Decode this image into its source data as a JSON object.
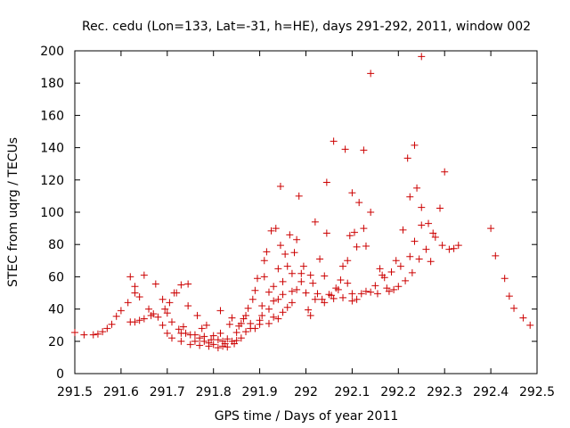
{
  "chart_data": {
    "type": "scatter",
    "title": "Rec. cedu (Lon=133, Lat=-31, h=HE), days 291-292, 2011, window 002",
    "xlabel": "GPS time / Days of year 2011",
    "ylabel": "STEC from uqrg / TECUs",
    "xlim": [
      291.5,
      292.5
    ],
    "ylim": [
      0,
      200
    ],
    "xticks": [
      291.5,
      291.6,
      291.7,
      291.8,
      291.9,
      292,
      292.1,
      292.2,
      292.3,
      292.4,
      292.5
    ],
    "yticks": [
      0,
      20,
      40,
      60,
      80,
      100,
      120,
      140,
      160,
      180,
      200
    ],
    "grid": false,
    "marker": "+",
    "color": "#cc0000",
    "points": [
      [
        291.5,
        25.5
      ],
      [
        291.52,
        24.0
      ],
      [
        291.54,
        24.0
      ],
      [
        291.55,
        24.5
      ],
      [
        291.56,
        26.0
      ],
      [
        291.57,
        28.0
      ],
      [
        291.58,
        30.5
      ],
      [
        291.59,
        35.5
      ],
      [
        291.6,
        39.0
      ],
      [
        291.615,
        44.0
      ],
      [
        291.62,
        60.0
      ],
      [
        291.62,
        32.0
      ],
      [
        291.63,
        50.0
      ],
      [
        291.63,
        54.0
      ],
      [
        291.63,
        32.0
      ],
      [
        291.64,
        33.0
      ],
      [
        291.64,
        47.5
      ],
      [
        291.65,
        61.0
      ],
      [
        291.65,
        34.0
      ],
      [
        291.66,
        40.0
      ],
      [
        291.665,
        36.0
      ],
      [
        291.67,
        37.0
      ],
      [
        291.675,
        55.5
      ],
      [
        291.68,
        35.0
      ],
      [
        291.69,
        30.0
      ],
      [
        291.69,
        46.0
      ],
      [
        291.695,
        40.0
      ],
      [
        291.7,
        25.0
      ],
      [
        291.7,
        37.5
      ],
      [
        291.705,
        44.0
      ],
      [
        291.71,
        22.0
      ],
      [
        291.71,
        32.0
      ],
      [
        291.715,
        50.0
      ],
      [
        291.72,
        50.0
      ],
      [
        291.725,
        27.5
      ],
      [
        291.73,
        55.0
      ],
      [
        291.73,
        20.0
      ],
      [
        291.73,
        25.0
      ],
      [
        291.735,
        29.0
      ],
      [
        291.74,
        25.0
      ],
      [
        291.745,
        55.5
      ],
      [
        291.745,
        42.0
      ],
      [
        291.75,
        18.0
      ],
      [
        291.75,
        24.0
      ],
      [
        291.76,
        24.0
      ],
      [
        291.76,
        20.0
      ],
      [
        291.765,
        36.0
      ],
      [
        291.77,
        17.5
      ],
      [
        291.77,
        22.0
      ],
      [
        291.775,
        28.0
      ],
      [
        291.78,
        20.0
      ],
      [
        291.78,
        23.0
      ],
      [
        291.785,
        30.0
      ],
      [
        291.79,
        17.0
      ],
      [
        291.79,
        19.0
      ],
      [
        291.795,
        21.0
      ],
      [
        291.8,
        18.0
      ],
      [
        291.8,
        23.5
      ],
      [
        291.81,
        16.0
      ],
      [
        291.81,
        21.0
      ],
      [
        291.815,
        25.0
      ],
      [
        291.815,
        39.0
      ],
      [
        291.82,
        17.0
      ],
      [
        291.82,
        20.0
      ],
      [
        291.825,
        18.5
      ],
      [
        291.83,
        16.5
      ],
      [
        291.83,
        21.5
      ],
      [
        291.835,
        30.5
      ],
      [
        291.84,
        20.0
      ],
      [
        291.84,
        34.5
      ],
      [
        291.845,
        18.5
      ],
      [
        291.85,
        20.5
      ],
      [
        291.85,
        25.5
      ],
      [
        291.855,
        29.5
      ],
      [
        291.86,
        22.0
      ],
      [
        291.86,
        31.0
      ],
      [
        291.865,
        34.0
      ],
      [
        291.87,
        26.0
      ],
      [
        291.87,
        36.0
      ],
      [
        291.875,
        40.5
      ],
      [
        291.88,
        28.0
      ],
      [
        291.88,
        31.0
      ],
      [
        291.885,
        46.0
      ],
      [
        291.89,
        51.5
      ],
      [
        291.89,
        28.0
      ],
      [
        291.895,
        59.0
      ],
      [
        291.9,
        30.5
      ],
      [
        291.9,
        33.0
      ],
      [
        291.905,
        36.0
      ],
      [
        291.905,
        42.0
      ],
      [
        291.91,
        60.0
      ],
      [
        291.91,
        70.0
      ],
      [
        291.915,
        75.5
      ],
      [
        291.92,
        31.0
      ],
      [
        291.92,
        40.0
      ],
      [
        291.92,
        50.5
      ],
      [
        291.925,
        88.5
      ],
      [
        291.93,
        35.0
      ],
      [
        291.93,
        45.0
      ],
      [
        291.93,
        54.0
      ],
      [
        291.935,
        90.0
      ],
      [
        291.94,
        34.0
      ],
      [
        291.94,
        46.0
      ],
      [
        291.94,
        65.0
      ],
      [
        291.945,
        79.5
      ],
      [
        291.945,
        116.0
      ],
      [
        291.95,
        38.0
      ],
      [
        291.95,
        49.0
      ],
      [
        291.95,
        57.0
      ],
      [
        291.955,
        74.0
      ],
      [
        291.96,
        41.0
      ],
      [
        291.96,
        66.5
      ],
      [
        291.965,
        86.0
      ],
      [
        291.97,
        44.0
      ],
      [
        291.97,
        51.0
      ],
      [
        291.97,
        62.0
      ],
      [
        291.975,
        75.0
      ],
      [
        291.98,
        52.0
      ],
      [
        291.98,
        83.0
      ],
      [
        291.985,
        110.0
      ],
      [
        291.99,
        57.0
      ],
      [
        291.99,
        62.0
      ],
      [
        291.995,
        66.5
      ],
      [
        292.0,
        50.0
      ],
      [
        292.005,
        39.5
      ],
      [
        292.01,
        36.0
      ],
      [
        292.01,
        61.0
      ],
      [
        292.015,
        56.0
      ],
      [
        292.02,
        46.0
      ],
      [
        292.02,
        94.0
      ],
      [
        292.025,
        49.5
      ],
      [
        292.03,
        71.0
      ],
      [
        292.035,
        46.0
      ],
      [
        292.04,
        44.0
      ],
      [
        292.04,
        60.5
      ],
      [
        292.045,
        87.0
      ],
      [
        292.045,
        118.5
      ],
      [
        292.05,
        49.0
      ],
      [
        292.055,
        48.5
      ],
      [
        292.06,
        46.5
      ],
      [
        292.06,
        144.0
      ],
      [
        292.065,
        53.0
      ],
      [
        292.07,
        52.0
      ],
      [
        292.075,
        58.0
      ],
      [
        292.08,
        47.0
      ],
      [
        292.08,
        66.5
      ],
      [
        292.085,
        139.0
      ],
      [
        292.09,
        56.0
      ],
      [
        292.09,
        70.0
      ],
      [
        292.095,
        85.5
      ],
      [
        292.1,
        45.0
      ],
      [
        292.1,
        49.5
      ],
      [
        292.1,
        112.0
      ],
      [
        292.105,
        87.5
      ],
      [
        292.11,
        46.0
      ],
      [
        292.11,
        78.5
      ],
      [
        292.115,
        106.0
      ],
      [
        292.12,
        49.5
      ],
      [
        292.125,
        90.0
      ],
      [
        292.125,
        138.5
      ],
      [
        292.13,
        51.0
      ],
      [
        292.13,
        79.0
      ],
      [
        292.14,
        50.5
      ],
      [
        292.14,
        100.0
      ],
      [
        292.14,
        186.0
      ],
      [
        292.15,
        54.5
      ],
      [
        292.155,
        49.5
      ],
      [
        292.16,
        65.0
      ],
      [
        292.165,
        61.0
      ],
      [
        292.17,
        59.5
      ],
      [
        292.175,
        53.0
      ],
      [
        292.18,
        51.0
      ],
      [
        292.185,
        63.0
      ],
      [
        292.19,
        52.0
      ],
      [
        292.195,
        70.0
      ],
      [
        292.2,
        54.0
      ],
      [
        292.205,
        66.5
      ],
      [
        292.21,
        89.0
      ],
      [
        292.215,
        57.5
      ],
      [
        292.22,
        133.5
      ],
      [
        292.225,
        109.5
      ],
      [
        292.225,
        72.5
      ],
      [
        292.23,
        62.5
      ],
      [
        292.235,
        82.0
      ],
      [
        292.235,
        141.5
      ],
      [
        292.24,
        115.0
      ],
      [
        292.245,
        71.0
      ],
      [
        292.25,
        92.0
      ],
      [
        292.25,
        103.0
      ],
      [
        292.25,
        196.5
      ],
      [
        292.26,
        77.0
      ],
      [
        292.265,
        93.0
      ],
      [
        292.27,
        69.5
      ],
      [
        292.275,
        87.0
      ],
      [
        292.28,
        84.5
      ],
      [
        292.29,
        102.5
      ],
      [
        292.295,
        79.5
      ],
      [
        292.3,
        125.0
      ],
      [
        292.31,
        77.0
      ],
      [
        292.32,
        77.5
      ],
      [
        292.33,
        79.5
      ],
      [
        292.4,
        90.0
      ],
      [
        292.41,
        73.0
      ],
      [
        292.43,
        59.0
      ],
      [
        292.44,
        48.0
      ],
      [
        292.45,
        40.5
      ],
      [
        292.47,
        34.5
      ],
      [
        292.485,
        30.0
      ]
    ]
  }
}
